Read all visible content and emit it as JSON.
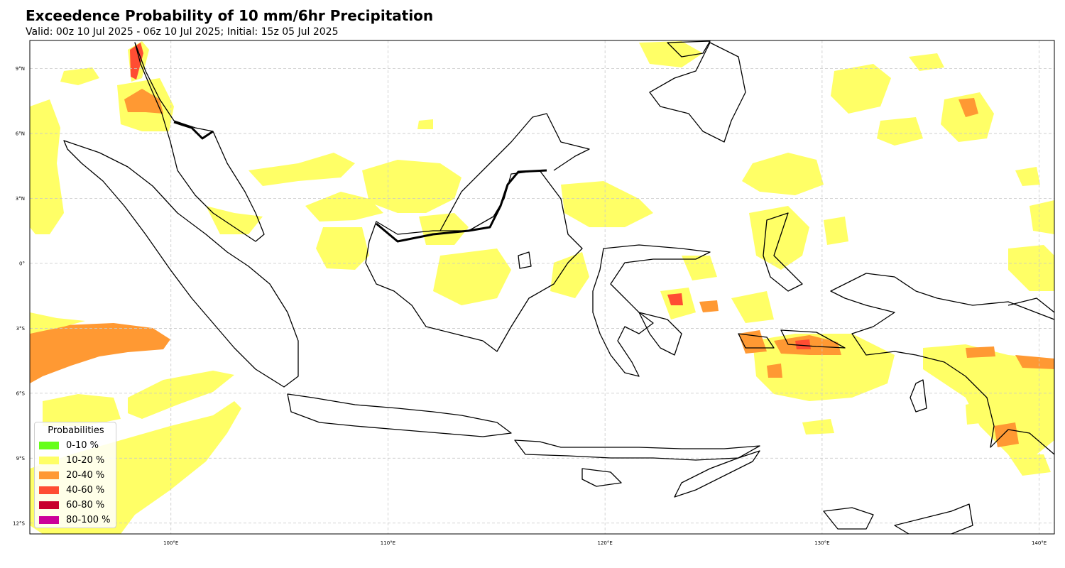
{
  "header": {
    "title": "Exceedence Probability of 10 mm/6hr Precipitation",
    "subtitle": "Valid: 00z 10 Jul 2025 - 06z 10 Jul 2025; Initial: 15z 05 Jul 2025"
  },
  "map": {
    "region": "Indonesia",
    "lon_range": [
      93.5,
      140.7
    ],
    "lat_range": [
      -12.5,
      10.3
    ],
    "gridlines": true,
    "lon_ticks": [
      {
        "value": 100,
        "label": "100°E"
      },
      {
        "value": 110,
        "label": "110°E"
      },
      {
        "value": 120,
        "label": "120°E"
      },
      {
        "value": 130,
        "label": "130°E"
      },
      {
        "value": 140,
        "label": "140°E"
      }
    ],
    "lat_ticks": [
      {
        "value": 9,
        "label": "9°N"
      },
      {
        "value": 6,
        "label": "6°N"
      },
      {
        "value": 3,
        "label": "3°N"
      },
      {
        "value": 0,
        "label": "0°"
      },
      {
        "value": -3,
        "label": "3°S"
      },
      {
        "value": -6,
        "label": "6°S"
      },
      {
        "value": -9,
        "label": "9°S"
      },
      {
        "value": -12,
        "label": "12°S"
      }
    ]
  },
  "legend": {
    "title": "Probabilities",
    "placement": "lower-left",
    "items": [
      {
        "label": "0-10 %",
        "color": "#66ff19"
      },
      {
        "label": "10-20 %",
        "color": "#ffff66"
      },
      {
        "label": "20-40 %",
        "color": "#ff9933"
      },
      {
        "label": "40-60 %",
        "color": "#ff4d33"
      },
      {
        "label": "60-80 %",
        "color": "#c8002d"
      },
      {
        "label": "80-100 %",
        "color": "#cc0099"
      }
    ]
  }
}
